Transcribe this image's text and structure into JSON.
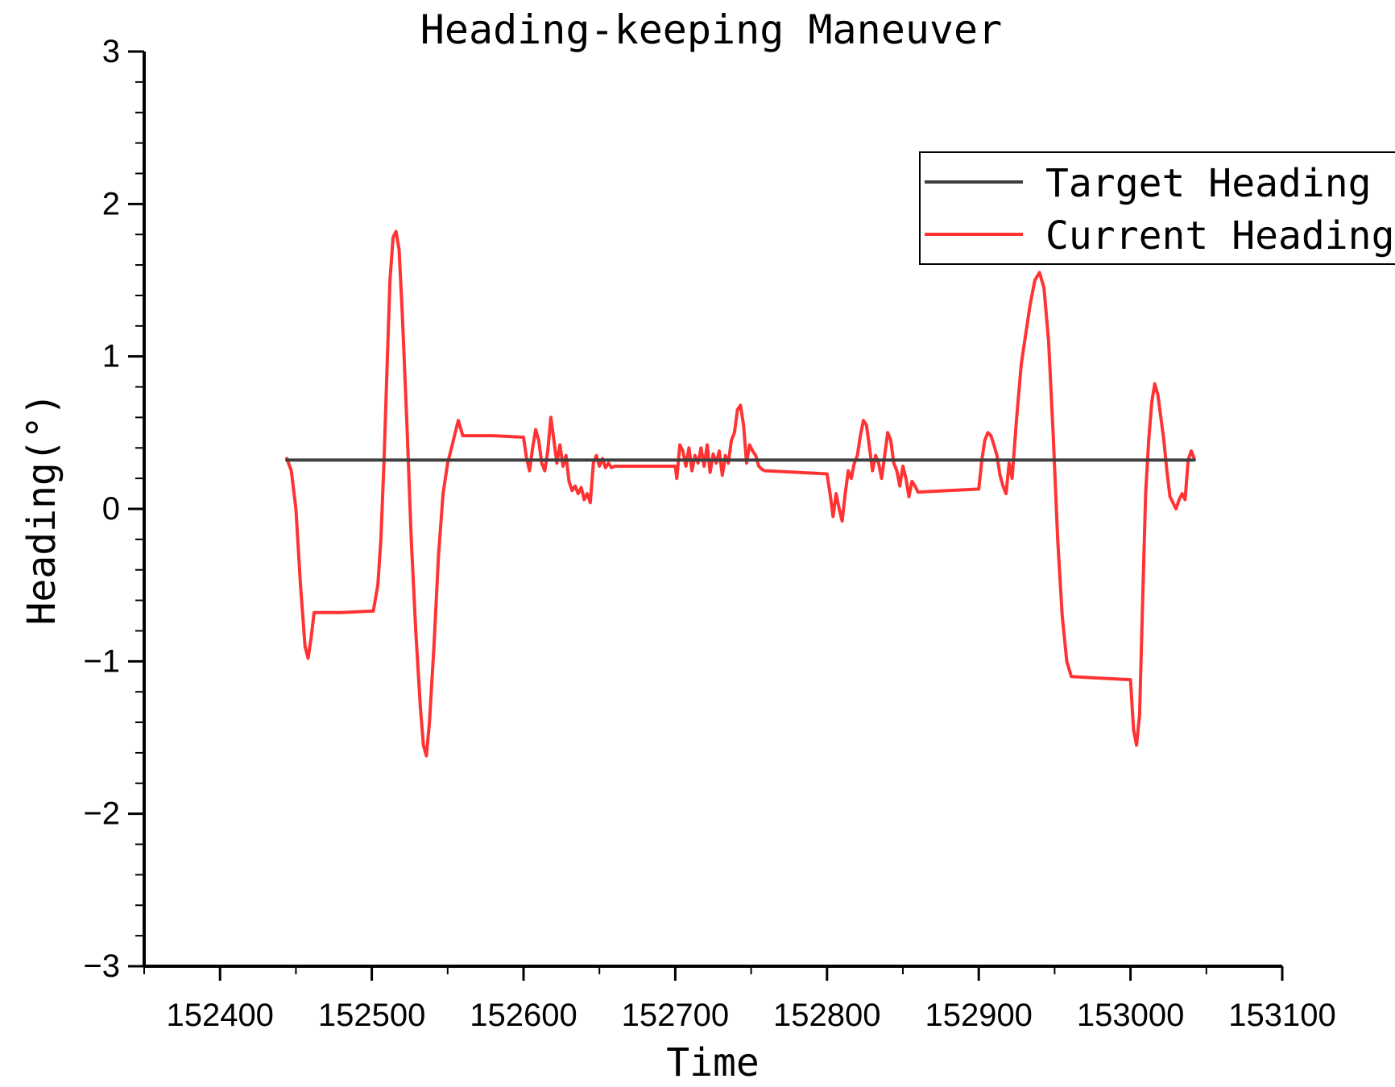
{
  "chart_data": {
    "type": "line",
    "title": "Heading-keeping Maneuver",
    "xlabel": "Time",
    "ylabel": "Heading(°)",
    "xlim": [
      152350,
      153100
    ],
    "ylim": [
      -3,
      3
    ],
    "xticks": [
      152400,
      152500,
      152600,
      152700,
      152800,
      152900,
      153000,
      153100
    ],
    "yticks": [
      -3,
      -2,
      -1,
      0,
      1,
      2,
      3
    ],
    "grid": false,
    "legend_position": "top-right",
    "series": [
      {
        "name": "Target Heading",
        "color": "#3f3f3f",
        "x": [
          152444,
          153042
        ],
        "y": [
          0.32,
          0.32
        ]
      },
      {
        "name": "Current Heading",
        "color": "#ff3333",
        "x": [
          152444,
          152447,
          152450,
          152453,
          152456,
          152458,
          152460,
          152462,
          152480,
          152501,
          152504,
          152506,
          152508,
          152510,
          152512,
          152514,
          152516,
          152518,
          152520,
          152523,
          152526,
          152529,
          152532,
          152534,
          152536,
          152538,
          152541,
          152544,
          152547,
          152550,
          152553,
          152555,
          152557,
          152560,
          152580,
          152600,
          152602,
          152604,
          152606,
          152608,
          152610,
          152612,
          152614,
          152616,
          152618,
          152620,
          152622,
          152624,
          152626,
          152628,
          152630,
          152632,
          152634,
          152636,
          152638,
          152640,
          152642,
          152644,
          152646,
          152648,
          152650,
          152652,
          152654,
          152656,
          152658,
          152660,
          152680,
          152700,
          152701,
          152703,
          152705,
          152707,
          152709,
          152711,
          152713,
          152715,
          152717,
          152719,
          152721,
          152723,
          152725,
          152727,
          152729,
          152731,
          152733,
          152735,
          152737,
          152739,
          152741,
          152743,
          152745,
          152747,
          152749,
          152751,
          152753,
          152755,
          152757,
          152759,
          152761,
          152780,
          152800,
          152802,
          152804,
          152806,
          152808,
          152810,
          152812,
          152814,
          152816,
          152818,
          152820,
          152822,
          152824,
          152826,
          152828,
          152830,
          152832,
          152834,
          152836,
          152838,
          152840,
          152842,
          152844,
          152846,
          152848,
          152850,
          152852,
          152854,
          152856,
          152858,
          152860,
          152880,
          152900,
          152902,
          152904,
          152906,
          152908,
          152910,
          152912,
          152914,
          152916,
          152918,
          152920,
          152922,
          152925,
          152928,
          152931,
          152934,
          152937,
          152940,
          152943,
          152946,
          152949,
          152952,
          152955,
          152958,
          152961,
          152980,
          153000,
          153002,
          153004,
          153006,
          153008,
          153010,
          153012,
          153014,
          153016,
          153018,
          153020,
          153022,
          153024,
          153026,
          153028,
          153030,
          153032,
          153034,
          153036,
          153038,
          153040,
          153042
        ],
        "y": [
          0.33,
          0.25,
          0.0,
          -0.5,
          -0.9,
          -0.98,
          -0.85,
          -0.68,
          -0.68,
          -0.67,
          -0.5,
          -0.2,
          0.3,
          0.9,
          1.5,
          1.78,
          1.82,
          1.7,
          1.3,
          0.6,
          -0.2,
          -0.8,
          -1.3,
          -1.55,
          -1.62,
          -1.4,
          -0.9,
          -0.3,
          0.1,
          0.3,
          0.42,
          0.5,
          0.58,
          0.48,
          0.48,
          0.47,
          0.33,
          0.25,
          0.4,
          0.52,
          0.45,
          0.3,
          0.25,
          0.38,
          0.6,
          0.45,
          0.3,
          0.42,
          0.28,
          0.35,
          0.18,
          0.12,
          0.15,
          0.1,
          0.14,
          0.06,
          0.1,
          0.04,
          0.3,
          0.35,
          0.28,
          0.33,
          0.27,
          0.3,
          0.27,
          0.28,
          0.28,
          0.28,
          0.2,
          0.42,
          0.38,
          0.28,
          0.4,
          0.25,
          0.35,
          0.3,
          0.4,
          0.28,
          0.42,
          0.24,
          0.36,
          0.3,
          0.38,
          0.22,
          0.35,
          0.3,
          0.45,
          0.5,
          0.65,
          0.68,
          0.55,
          0.3,
          0.42,
          0.38,
          0.35,
          0.28,
          0.26,
          0.25,
          0.25,
          0.24,
          0.23,
          0.1,
          -0.05,
          0.1,
          0.0,
          -0.08,
          0.1,
          0.25,
          0.2,
          0.3,
          0.35,
          0.48,
          0.58,
          0.55,
          0.4,
          0.25,
          0.35,
          0.3,
          0.2,
          0.35,
          0.5,
          0.45,
          0.3,
          0.25,
          0.15,
          0.28,
          0.2,
          0.08,
          0.18,
          0.15,
          0.11,
          0.12,
          0.13,
          0.32,
          0.45,
          0.5,
          0.48,
          0.42,
          0.35,
          0.22,
          0.15,
          0.1,
          0.3,
          0.2,
          0.6,
          0.95,
          1.15,
          1.35,
          1.5,
          1.55,
          1.45,
          1.1,
          0.5,
          -0.2,
          -0.7,
          -1.0,
          -1.1,
          -1.11,
          -1.12,
          -1.45,
          -1.55,
          -1.35,
          -0.6,
          0.1,
          0.45,
          0.7,
          0.82,
          0.75,
          0.6,
          0.45,
          0.25,
          0.08,
          0.04,
          0.0,
          0.06,
          0.1,
          0.06,
          0.32,
          0.38,
          0.33
        ]
      }
    ]
  }
}
